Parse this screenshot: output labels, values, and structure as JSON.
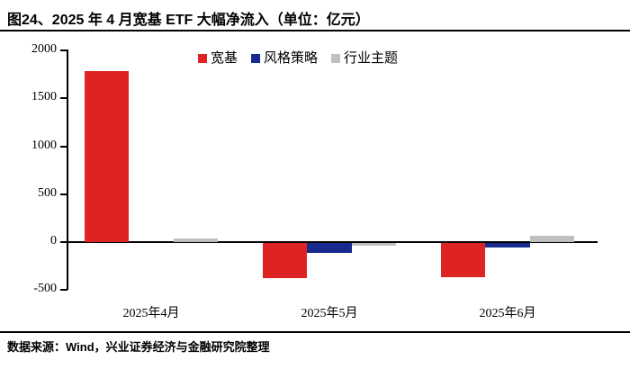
{
  "title": "图24、2025 年 4 月宽基 ETF 大幅净流入（单位：亿元）",
  "source": "数据来源：Wind，兴业证券经济与金融研究院整理",
  "colors": {
    "broad_based": "#DE2423",
    "style_strategy": "#172A8D",
    "industry_theme": "#BFBFBF",
    "axis": "#000000"
  },
  "chart_data": {
    "type": "bar",
    "title": "图24、2025 年 4 月宽基 ETF 大幅净流入",
    "unit": "亿元",
    "categories": [
      "2025年4月",
      "2025年5月",
      "2025年6月"
    ],
    "series": [
      {
        "key": "broad-based",
        "name": "宽基",
        "color": "#DE2423",
        "values": [
          1780,
          -370,
          -355
        ]
      },
      {
        "key": "style-strategy",
        "name": "风格策略",
        "color": "#172A8D",
        "values": [
          0,
          -105,
          -45
        ]
      },
      {
        "key": "industry-theme",
        "name": "行业主题",
        "color": "#BFBFBF",
        "values": [
          35,
          -25,
          70
        ]
      }
    ],
    "ylim": [
      -500,
      2000
    ],
    "yticks": [
      2000,
      1500,
      1000,
      500,
      0,
      -500
    ],
    "xlabel": "",
    "ylabel": "",
    "legend_position": "top-center",
    "grid": false
  }
}
